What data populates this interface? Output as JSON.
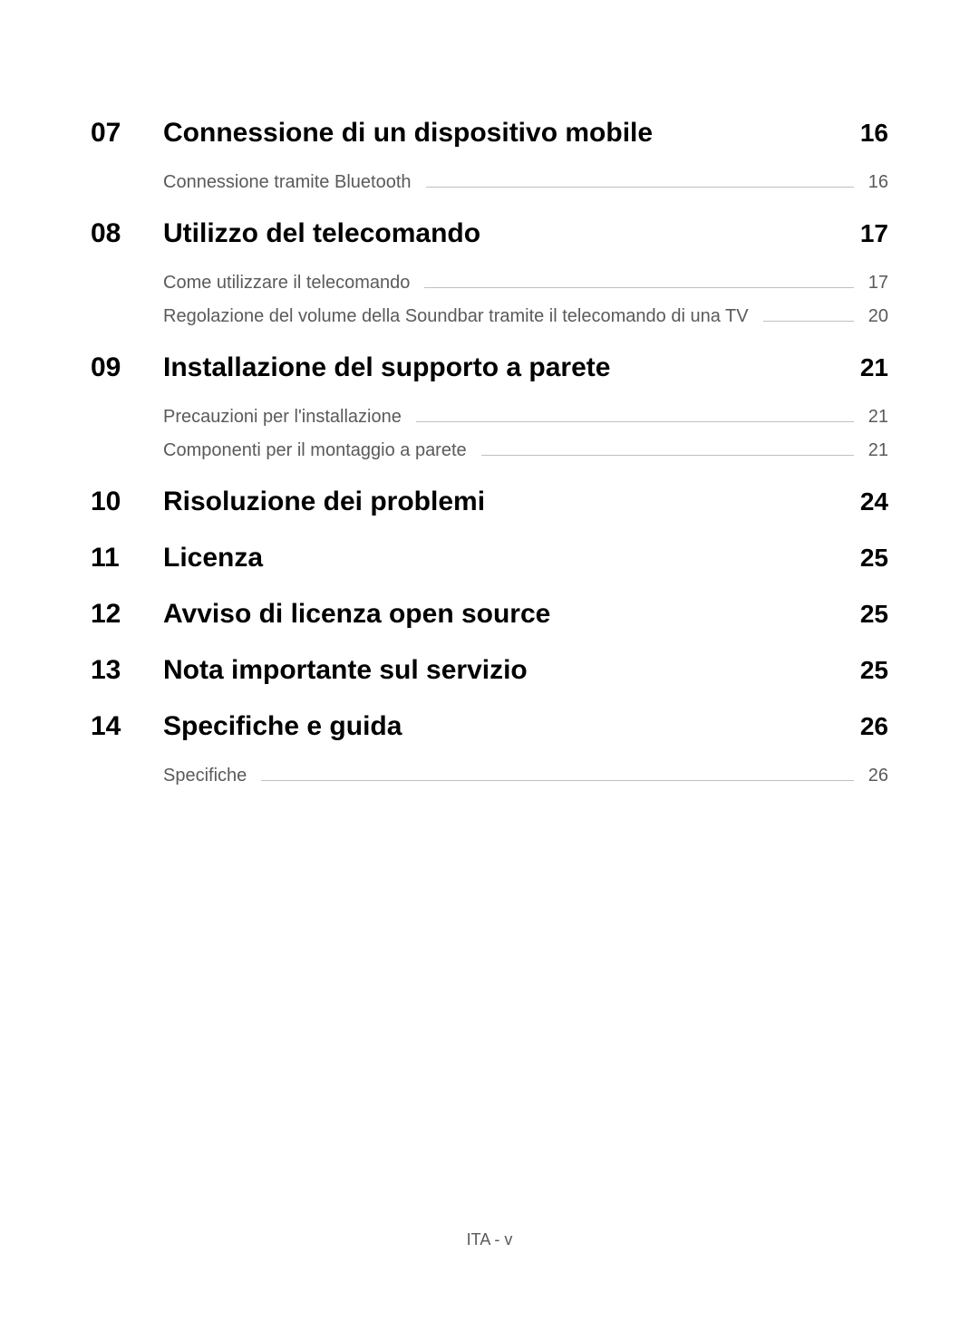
{
  "toc": [
    {
      "number": "07",
      "title": "Connessione di un dispositivo mobile",
      "page": "16",
      "subitems": [
        {
          "title": "Connessione tramite Bluetooth",
          "page": "16"
        }
      ]
    },
    {
      "number": "08",
      "title": "Utilizzo del telecomando",
      "page": "17",
      "subitems": [
        {
          "title": "Come utilizzare il telecomando",
          "page": "17"
        },
        {
          "title": "Regolazione del volume della Soundbar tramite il telecomando di una TV",
          "page": "20"
        }
      ]
    },
    {
      "number": "09",
      "title": "Installazione del supporto a parete",
      "page": "21",
      "subitems": [
        {
          "title": "Precauzioni per l'installazione",
          "page": "21"
        },
        {
          "title": "Componenti per il montaggio a parete",
          "page": "21"
        }
      ]
    },
    {
      "number": "10",
      "title": "Risoluzione dei problemi",
      "page": "24",
      "subitems": []
    },
    {
      "number": "11",
      "title": "Licenza",
      "page": "25",
      "subitems": []
    },
    {
      "number": "12",
      "title": "Avviso di licenza open source",
      "page": "25",
      "subitems": []
    },
    {
      "number": "13",
      "title": "Nota importante sul servizio",
      "page": "25",
      "subitems": []
    },
    {
      "number": "14",
      "title": "Specifiche e guida",
      "page": "26",
      "subitems": [
        {
          "title": "Specifiche",
          "page": "26"
        }
      ]
    }
  ],
  "footer": "ITA - v"
}
